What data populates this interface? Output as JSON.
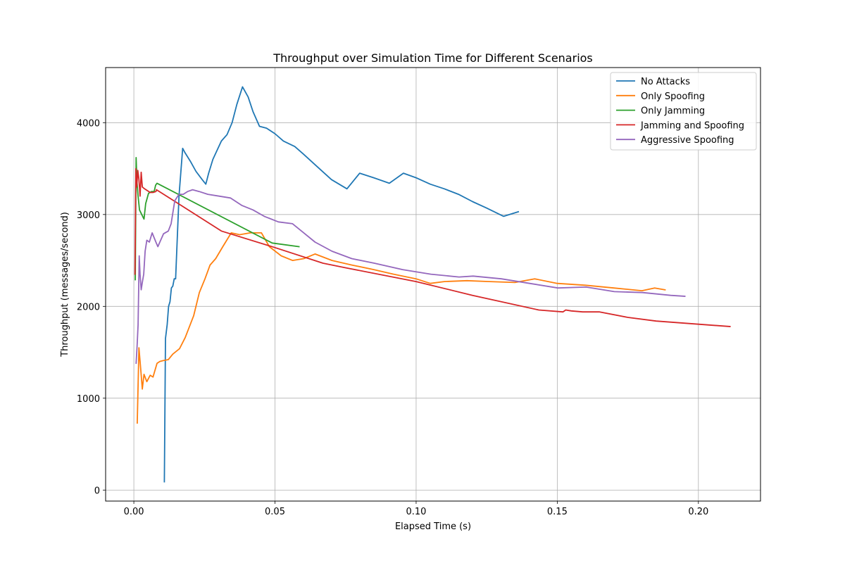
{
  "chart_data": {
    "type": "line",
    "title": "Throughput over Simulation Time for Different Scenarios",
    "xlabel": "Elapsed Time (s)",
    "ylabel": "Throughput (messages/second)",
    "xlim": [
      -0.01,
      0.222
    ],
    "ylim": [
      -120,
      4600
    ],
    "xticks": [
      0.0,
      0.05,
      0.1,
      0.15,
      0.2
    ],
    "xtick_labels": [
      "0.00",
      "0.05",
      "0.10",
      "0.15",
      "0.20"
    ],
    "yticks": [
      0,
      1000,
      2000,
      3000,
      4000
    ],
    "ytick_labels": [
      "0",
      "1000",
      "2000",
      "3000",
      "4000"
    ],
    "grid": true,
    "legend_position": "upper right",
    "series": [
      {
        "name": "No Attacks",
        "color": "#1f77b4",
        "x": [
          0.0108,
          0.0112,
          0.0118,
          0.0123,
          0.0128,
          0.0133,
          0.0138,
          0.0143,
          0.0148,
          0.016,
          0.0173,
          0.018,
          0.02,
          0.022,
          0.0242,
          0.0255,
          0.0265,
          0.028,
          0.0295,
          0.031,
          0.033,
          0.0348,
          0.0365,
          0.0385,
          0.0405,
          0.0422,
          0.0445,
          0.047,
          0.05,
          0.053,
          0.057,
          0.06,
          0.065,
          0.07,
          0.0755,
          0.08,
          0.085,
          0.0905,
          0.0955,
          0.1,
          0.105,
          0.11,
          0.115,
          0.12,
          0.125,
          0.131,
          0.1362
        ],
        "y": [
          90,
          1650,
          1800,
          2000,
          2050,
          2200,
          2220,
          2300,
          2300,
          3200,
          3720,
          3680,
          3580,
          3470,
          3380,
          3330,
          3450,
          3600,
          3700,
          3800,
          3870,
          4000,
          4200,
          4390,
          4280,
          4120,
          3960,
          3940,
          3880,
          3800,
          3740,
          3660,
          3520,
          3380,
          3280,
          3450,
          3400,
          3340,
          3450,
          3400,
          3330,
          3280,
          3220,
          3140,
          3070,
          2980,
          3030
        ]
      },
      {
        "name": "Only Spoofing",
        "color": "#ff7f0e",
        "x": [
          0.0012,
          0.0018,
          0.0024,
          0.003,
          0.0036,
          0.0046,
          0.0058,
          0.0068,
          0.0082,
          0.0092,
          0.0105,
          0.0122,
          0.0138,
          0.0162,
          0.0182,
          0.0212,
          0.0232,
          0.0252,
          0.027,
          0.029,
          0.0315,
          0.0345,
          0.0375,
          0.0412,
          0.0452,
          0.048,
          0.0522,
          0.0562,
          0.0602,
          0.0642,
          0.0702,
          0.0772,
          0.085,
          0.092,
          0.1,
          0.105,
          0.11,
          0.118,
          0.126,
          0.135,
          0.142,
          0.15,
          0.16,
          0.17,
          0.18,
          0.1845,
          0.1882
        ],
        "y": [
          730,
          1550,
          1330,
          1100,
          1260,
          1180,
          1250,
          1230,
          1380,
          1400,
          1410,
          1420,
          1480,
          1540,
          1660,
          1900,
          2150,
          2300,
          2450,
          2520,
          2650,
          2800,
          2780,
          2800,
          2800,
          2650,
          2550,
          2500,
          2520,
          2570,
          2500,
          2450,
          2400,
          2350,
          2300,
          2250,
          2270,
          2280,
          2270,
          2260,
          2300,
          2250,
          2230,
          2200,
          2170,
          2200,
          2180
        ]
      },
      {
        "name": "Only Jamming",
        "color": "#2ca02c",
        "x": [
          0.0005,
          0.0008,
          0.0011,
          0.0015,
          0.002,
          0.0028,
          0.0036,
          0.0042,
          0.0052,
          0.0062,
          0.0072,
          0.0077,
          0.0082,
          0.049,
          0.0585
        ],
        "y": [
          2290,
          3620,
          3350,
          3200,
          3050,
          3000,
          2950,
          3120,
          3230,
          3250,
          3250,
          3320,
          3340,
          2690,
          2650
        ]
      },
      {
        "name": "Jamming and Spoofing",
        "color": "#d62728",
        "x": [
          0.0004,
          0.0007,
          0.001,
          0.0014,
          0.0018,
          0.0022,
          0.0026,
          0.003,
          0.0038,
          0.0048,
          0.0058,
          0.0068,
          0.0078,
          0.008,
          0.031,
          0.05,
          0.067,
          0.075,
          0.1,
          0.12,
          0.1435,
          0.152,
          0.153,
          0.155,
          0.159,
          0.165,
          0.175,
          0.185,
          0.2112
        ],
        "y": [
          2350,
          3500,
          3300,
          3480,
          3380,
          3200,
          3460,
          3300,
          3280,
          3260,
          3240,
          3240,
          3250,
          3270,
          2820,
          2640,
          2470,
          2420,
          2270,
          2120,
          1960,
          1940,
          1960,
          1950,
          1940,
          1940,
          1880,
          1840,
          1780
        ]
      },
      {
        "name": "Aggressive Spoofing",
        "color": "#9467bd",
        "x": [
          0.0008,
          0.0012,
          0.0015,
          0.0019,
          0.0022,
          0.0026,
          0.003,
          0.0035,
          0.004,
          0.0046,
          0.0055,
          0.0065,
          0.0078,
          0.0085,
          0.0092,
          0.0105,
          0.0122,
          0.0132,
          0.0145,
          0.016,
          0.0175,
          0.019,
          0.0208,
          0.0232,
          0.0262,
          0.0302,
          0.0342,
          0.0382,
          0.0422,
          0.0462,
          0.0512,
          0.0562,
          0.0602,
          0.0642,
          0.0702,
          0.0772,
          0.0852,
          0.0952,
          0.1052,
          0.1152,
          0.1202,
          0.1302,
          0.1402,
          0.1502,
          0.1602,
          0.1702,
          0.1802,
          0.1902,
          0.1952
        ],
        "y": [
          1380,
          1600,
          1800,
          2550,
          2350,
          2180,
          2260,
          2350,
          2600,
          2720,
          2700,
          2800,
          2700,
          2650,
          2700,
          2790,
          2820,
          2900,
          3150,
          3220,
          3220,
          3250,
          3270,
          3250,
          3220,
          3200,
          3180,
          3100,
          3050,
          2980,
          2920,
          2900,
          2800,
          2700,
          2600,
          2520,
          2470,
          2400,
          2350,
          2320,
          2330,
          2300,
          2250,
          2200,
          2210,
          2160,
          2150,
          2120,
          2110
        ]
      }
    ]
  }
}
